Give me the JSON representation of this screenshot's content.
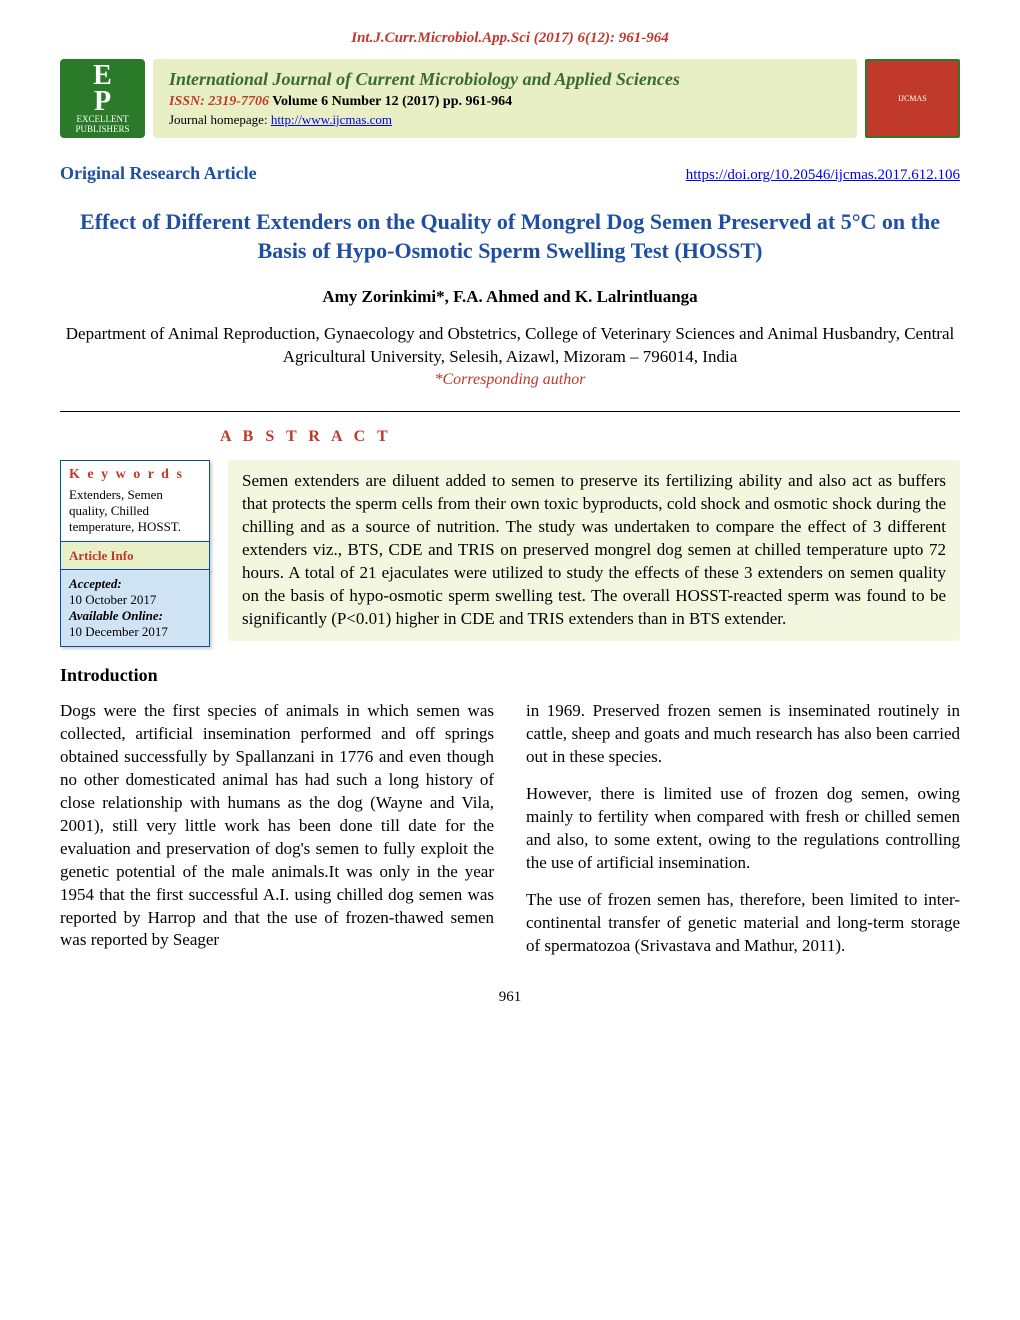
{
  "header_citation": "Int.J.Curr.Microbiol.App.Sci (2017) 6(12): 961-964",
  "logo_left": {
    "initials_top": "E",
    "initials_bot": "P",
    "text": "EXCELLENT PUBLISHERS"
  },
  "banner": {
    "journal_name": "International Journal of Current Microbiology and Applied Sciences",
    "issn_label": "ISSN: 2319-7706",
    "vol_issue": " Volume 6 Number 12 (2017) pp. 961-964",
    "homepage_label": "Journal homepage: ",
    "homepage_url": "http://www.ijcmas.com"
  },
  "logo_right": "IJCMAS",
  "article_type": "Original Research Article",
  "doi_url": "https://doi.org/10.20546/ijcmas.2017.612.106",
  "title": "Effect of Different Extenders on the Quality of Mongrel Dog Semen Preserved at 5°C on the Basis of Hypo-Osmotic Sperm Swelling Test (HOSST)",
  "authors": "Amy Zorinkimi*, F.A. Ahmed and K. Lalrintluanga",
  "affiliation": "Department of Animal Reproduction, Gynaecology and Obstetrics, College of Veterinary Sciences and Animal Husbandry, Central Agricultural University, Selesih, Aizawl, Mizoram – 796014, India",
  "corresponding": "*Corresponding author",
  "abstract_label": "A B S T R A C T",
  "keywords": {
    "heading": "K e y w o r d s",
    "text": "Extenders, Semen quality, Chilled temperature, HOSST."
  },
  "article_info": {
    "heading": "Article Info",
    "accepted_label": "Accepted:",
    "accepted_date": "10 October 2017",
    "online_label": "Available Online:",
    "online_date": "10 December 2017"
  },
  "abstract_text": "Semen extenders are diluent added to semen to preserve its fertilizing ability and also act as buffers that protects the sperm cells from their own toxic byproducts, cold shock and osmotic shock during the chilling and as a source of nutrition. The study was undertaken to compare the effect of 3 different extenders viz., BTS, CDE and TRIS on preserved mongrel dog semen at chilled temperature upto 72 hours. A total of 21 ejaculates were utilized to study the effects of these 3 extenders on semen quality on the basis of hypo-osmotic sperm swelling test. The overall HOSST-reacted sperm was found to be significantly (P<0.01) higher in CDE and TRIS extenders than in BTS extender.",
  "intro_heading": "Introduction",
  "col1_p1": "Dogs were the first species of animals in which semen was collected, artificial insemination performed and off springs obtained successfully by Spallanzani in 1776 and even though no other domesticated animal has had such a long history of close relationship with humans as the dog (Wayne and Vila, 2001), still very little work has been done till date for the evaluation and preservation of dog's semen to fully exploit the genetic potential of the male animals.It was only in the year 1954 that the first successful A.I. using chilled dog semen was reported by Harrop and that the use of frozen-thawed semen was reported by Seager",
  "col2_p1": "in 1969. Preserved frozen semen is inseminated routinely in cattle, sheep and goats and much research has also been carried out in these species.",
  "col2_p2": "However, there is limited use of frozen dog semen, owing mainly to fertility when compared with fresh or chilled semen and also, to some extent, owing to the regulations controlling the use of artificial insemination.",
  "col2_p3": "The use of frozen semen has, therefore, been limited to inter-continental transfer of genetic material and long-term storage of spermatozoa (Srivastava and Mathur, 2011).",
  "page_number": "961",
  "colors": {
    "accent_red": "#c0392b",
    "accent_blue": "#1e4fa3",
    "link_blue": "#0000ee",
    "banner_bg": "#e8efc5",
    "abstract_bg": "#f4f7df",
    "box_border": "#0a4fa0",
    "dates_bg": "#cfe3f5",
    "logo_green": "#2a7a2a"
  }
}
